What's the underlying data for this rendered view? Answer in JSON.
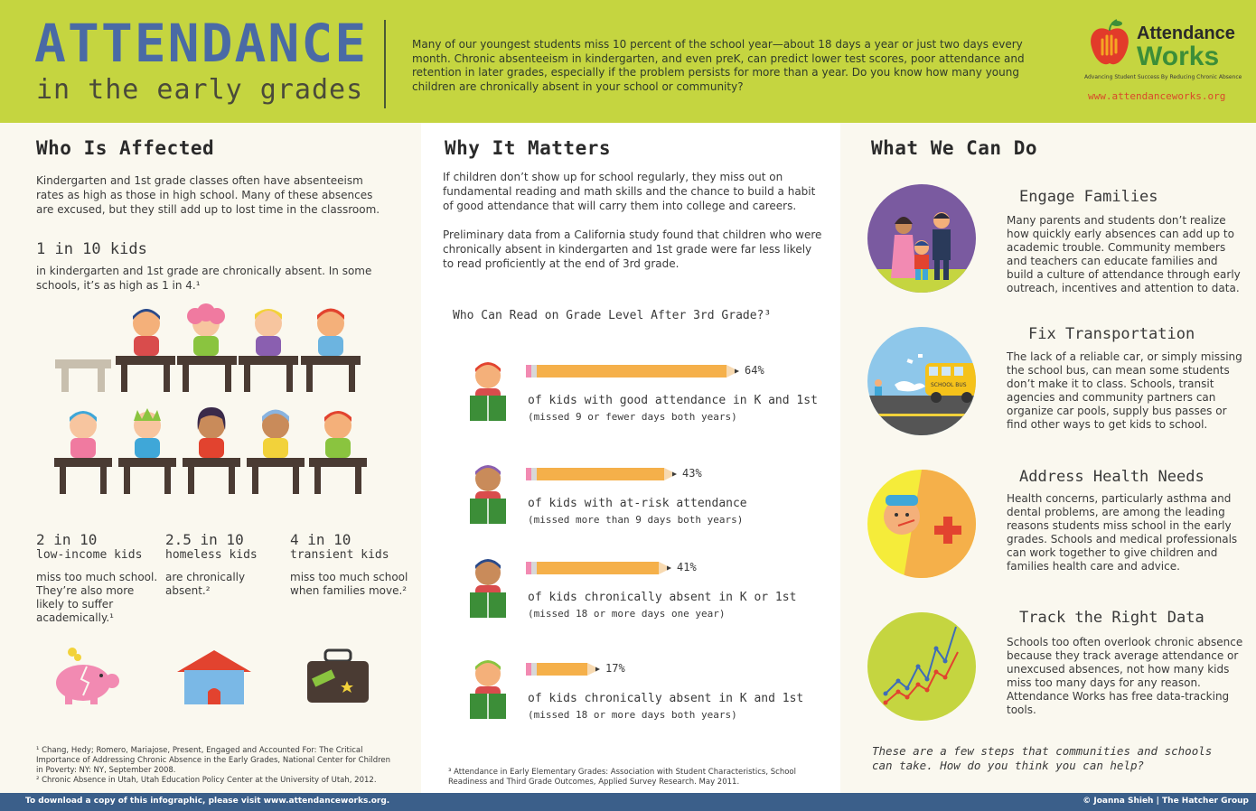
{
  "header": {
    "title": "ATTENDANCE",
    "subtitle": "in the early grades",
    "intro": "Many of our youngest students miss 10 percent of the school year—about 18 days a year or just two days every month.  Chronic absenteeism in kindergarten, and even preK, can predict lower test scores, poor attendance and retention in later grades, especially if the problem persists for more than a year. Do you know how many young children are chronically absent in your school or community?",
    "logo_line1": "Attendance",
    "logo_line2": "Works",
    "logo_tagline": "Advancing Student Success By Reducing Chronic Absence",
    "logo_url": "www.attendanceworks.org"
  },
  "affected": {
    "heading": "Who Is Affected",
    "intro": "Kindergarten and 1st grade classes often have absenteeism rates as high as those in high school. Many of these absences are excused, but they still add up to lost time in the classroom.",
    "stat_main": "1 in 10 kids",
    "stat_main_desc": "in kindergarten and 1st grade are chronically absent. In some schools, it’s as high as 1 in 4.¹",
    "stats": [
      {
        "num": "2 in 10",
        "label": "low-income kids",
        "desc": "miss too much school. They’re also more likely to suffer academically.¹"
      },
      {
        "num": "2.5 in 10",
        "label": "homeless kids",
        "desc": "are chronically absent.²"
      },
      {
        "num": "4 in 10",
        "label": "transient kids",
        "desc": "miss too much school when families move.²"
      }
    ],
    "footnote1": "¹ Chang, Hedy; Romero, Mariajose, Present, Engaged and Accounted For: The Critical Importance of Addressing Chronic Absence in the Early Grades, National Center for Children in Poverty: NY: NY, September 2008.",
    "footnote2": "² Chronic Absence in Utah, Utah Education Policy Center at the University of Utah, 2012."
  },
  "matters": {
    "heading": "Why It Matters",
    "p1": "If children don’t show up for school regularly, they miss out on fundamental reading and math skills and the chance to build a habit of good attendance that will carry them into college and careers.",
    "p2": "Preliminary data from a California study found that children who were chronically absent in kindergarten and 1st grade were far less likely to read proficiently at the end of 3rd grade.",
    "chart_title": "Who Can Read on Grade Level After 3rd Grade?³",
    "footnote": "³ Attendance in Early Elementary Grades: Association with Student Characteristics, School Readiness and Third Grade Outcomes, Applied Survey Research. May 2011."
  },
  "chart_data": {
    "type": "bar",
    "title": "Who Can Read on Grade Level After 3rd Grade?³",
    "categories": [
      "of kids with good attendance in K and 1st",
      "of kids with at-risk attendance",
      "of kids chronically absent in K or 1st",
      "of kids chronically absent in K and 1st"
    ],
    "subtitles": [
      "(missed 9 or fewer days both years)",
      "(missed more than 9 days both years)",
      "(missed 18 or more days one year)",
      "(missed 18 or more days both years)"
    ],
    "values": [
      64,
      43,
      41,
      17
    ],
    "labels": [
      "64%",
      "43%",
      "41%",
      "17%"
    ],
    "ylim": [
      0,
      100
    ]
  },
  "actions": {
    "heading": "What We Can Do",
    "items": [
      {
        "title": "Engage Families",
        "desc": "Many parents and students don’t realize how quickly early absences can add up to academic trouble. Community members and teachers can educate families and build a culture of attendance through early outreach, incentives and attention to data."
      },
      {
        "title": "Fix Transportation",
        "desc": "The lack of a reliable car, or simply missing the school bus, can mean some students don’t make it to class. Schools, transit agencies and community partners can organize car pools, supply bus passes or find other ways to get kids to school."
      },
      {
        "title": "Address Health Needs",
        "desc": "Health concerns, particularly asthma and dental problems, are among the leading reasons students miss school in the early grades. Schools and medical professionals can work together to give children and families health care and advice."
      },
      {
        "title": "Track the Right Data",
        "desc": "Schools too often overlook chronic absence because they track average attendance or unexcused absences, not how many kids miss too many days for any reason. Attendance Works has free data-tracking tools."
      }
    ],
    "bus_text": "SCHOOL BUS",
    "closing": "These are a few steps that communities and schools can take. How do you think you can help?"
  },
  "footer": {
    "left": "To download a copy of this infographic, please visit www.attendanceworks.org.",
    "right": "© Joanna Shieh | The Hatcher Group"
  }
}
